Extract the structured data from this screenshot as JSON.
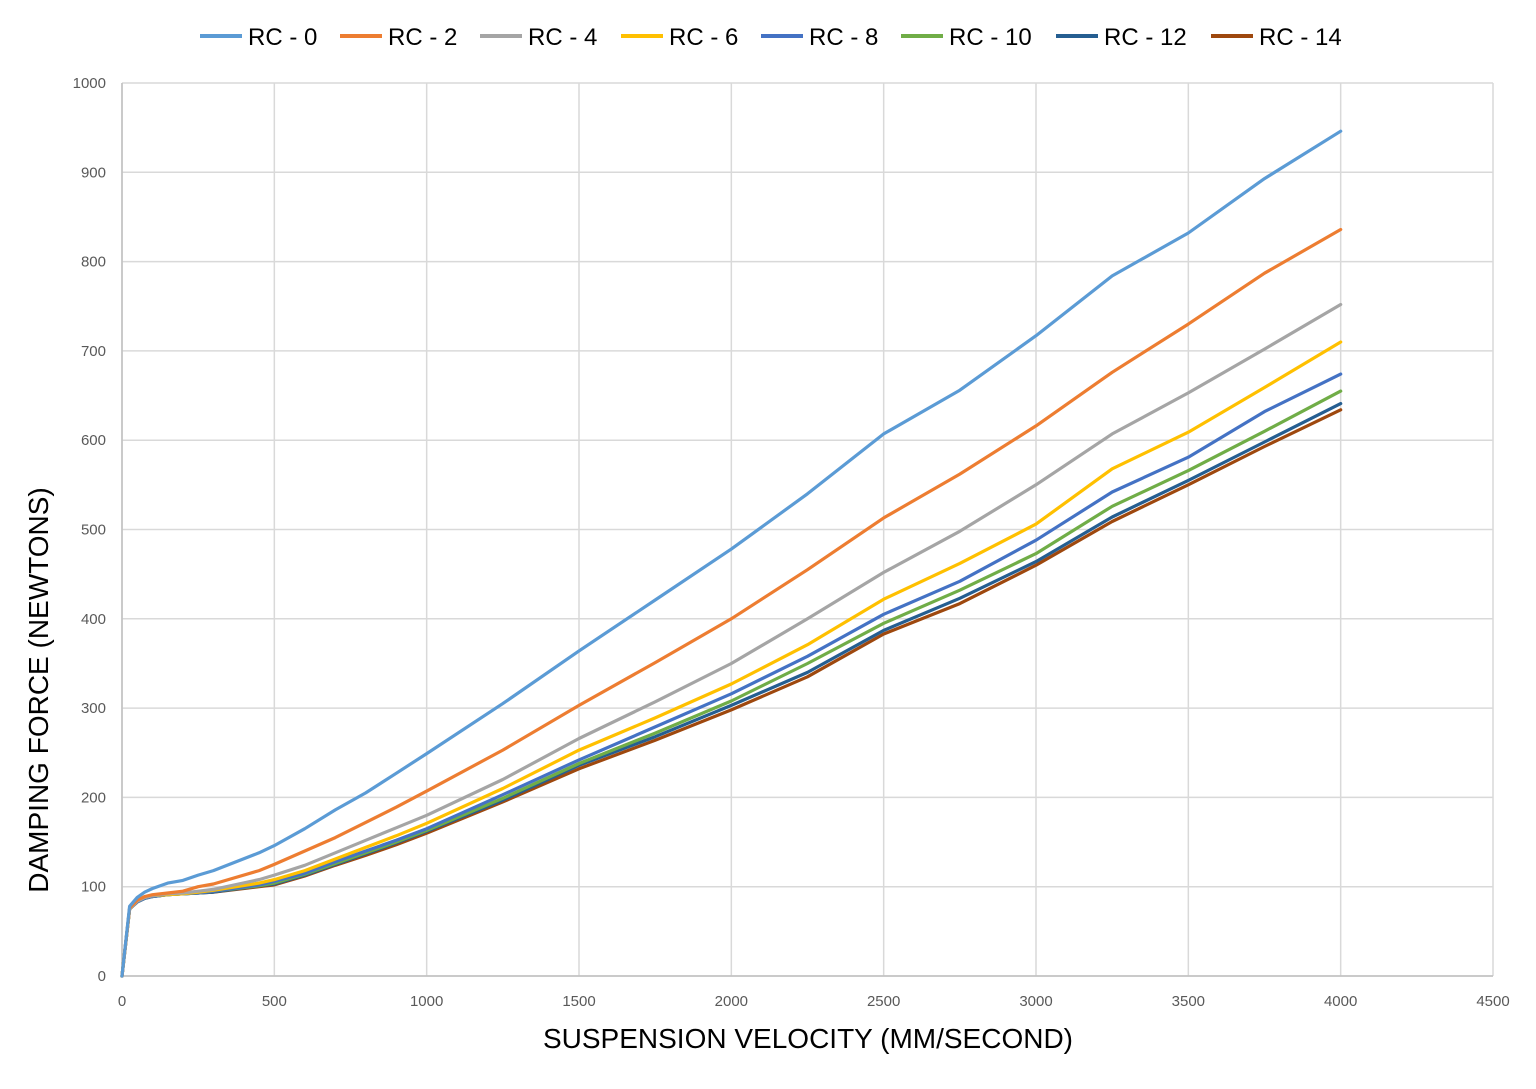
{
  "chart_data": {
    "type": "line",
    "title": "",
    "xlabel": "SUSPENSION VELOCITY (MM/SECOND)",
    "ylabel": "DAMPING FORCE (NEWTONS)",
    "xlim": [
      0,
      4500
    ],
    "ylim": [
      0,
      1000
    ],
    "xticks": [
      0,
      500,
      1000,
      1500,
      2000,
      2500,
      3000,
      3500,
      4000,
      4500
    ],
    "yticks": [
      0,
      100,
      200,
      300,
      400,
      500,
      600,
      700,
      800,
      900,
      1000
    ],
    "grid": true,
    "legend_position": "top",
    "x": [
      0,
      25,
      50,
      75,
      100,
      150,
      200,
      250,
      300,
      450,
      500,
      600,
      700,
      800,
      900,
      1000,
      1250,
      1500,
      1750,
      2000,
      2250,
      2500,
      2750,
      3000,
      3250,
      3500,
      3750,
      4000
    ],
    "series": [
      {
        "name": "RC - 0",
        "color": "#5B9BD5",
        "values": [
          0,
          78,
          88,
          94,
          98,
          104,
          107,
          113,
          118,
          138,
          146,
          165,
          186,
          205,
          227,
          249,
          305,
          364,
          421,
          478,
          540,
          607,
          656,
          717,
          784,
          832,
          893,
          946
        ]
      },
      {
        "name": "RC - 2",
        "color": "#ED7D31",
        "values": [
          0,
          76,
          85,
          89,
          91,
          93,
          95,
          100,
          103,
          118,
          125,
          140,
          155,
          172,
          189,
          207,
          253,
          303,
          351,
          400,
          455,
          513,
          562,
          616,
          676,
          730,
          787,
          836
        ]
      },
      {
        "name": "RC - 4",
        "color": "#A5A5A5",
        "values": [
          0,
          75,
          84,
          88,
          90,
          92,
          93,
          95,
          97,
          108,
          113,
          124,
          138,
          152,
          166,
          180,
          220,
          266,
          307,
          350,
          400,
          452,
          498,
          550,
          607,
          653,
          702,
          752
        ]
      },
      {
        "name": "RC - 6",
        "color": "#FFC000",
        "values": [
          0,
          75,
          84,
          88,
          90,
          91,
          92,
          94,
          96,
          104,
          108,
          118,
          131,
          144,
          157,
          171,
          210,
          253,
          289,
          327,
          371,
          422,
          462,
          506,
          568,
          609,
          659,
          710
        ]
      },
      {
        "name": "RC - 8",
        "color": "#4472C4",
        "values": [
          0,
          75,
          83,
          87,
          89,
          91,
          92,
          93,
          95,
          102,
          106,
          115,
          128,
          140,
          152,
          165,
          203,
          242,
          279,
          316,
          358,
          405,
          442,
          488,
          542,
          581,
          632,
          674
        ]
      },
      {
        "name": "RC - 10",
        "color": "#70AD47",
        "values": [
          0,
          75,
          83,
          87,
          89,
          91,
          92,
          93,
          95,
          101,
          104,
          114,
          126,
          138,
          150,
          163,
          199,
          238,
          272,
          308,
          350,
          395,
          432,
          473,
          526,
          566,
          610,
          655
        ]
      },
      {
        "name": "RC - 12",
        "color": "#255E91",
        "values": [
          0,
          75,
          83,
          87,
          89,
          91,
          92,
          93,
          94,
          101,
          103,
          113,
          125,
          137,
          149,
          162,
          197,
          236,
          268,
          303,
          340,
          387,
          423,
          464,
          514,
          555,
          598,
          641
        ]
      },
      {
        "name": "RC - 14",
        "color": "#9E480E",
        "values": [
          0,
          75,
          83,
          87,
          89,
          91,
          92,
          93,
          94,
          100,
          102,
          112,
          124,
          135,
          147,
          160,
          195,
          232,
          264,
          298,
          335,
          383,
          417,
          460,
          509,
          550,
          593,
          634
        ]
      }
    ]
  }
}
